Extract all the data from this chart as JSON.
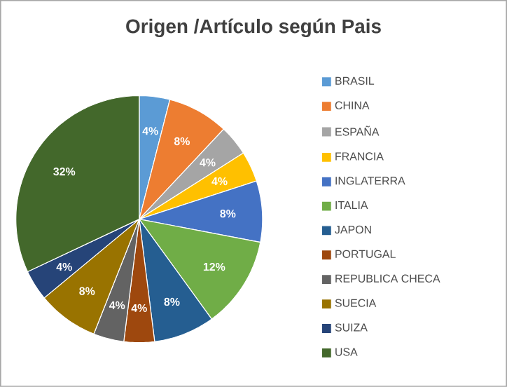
{
  "chart_data": {
    "type": "pie",
    "title": "Origen /Artículo según Pais",
    "categories": [
      "BRASIL",
      "CHINA",
      "ESPAÑA",
      "FRANCIA",
      "INGLATERRA",
      "ITALIA",
      "JAPON",
      "PORTUGAL",
      "REPUBLICA CHECA",
      "SUECIA",
      "SUIZA",
      "USA"
    ],
    "values": [
      4,
      8,
      4,
      4,
      8,
      12,
      8,
      4,
      4,
      8,
      4,
      32
    ],
    "value_labels": [
      "4%",
      "8%",
      "4%",
      "4%",
      "8%",
      "12%",
      "8%",
      "4%",
      "4%",
      "8%",
      "4%",
      "32%"
    ],
    "colors": [
      "#5b9bd5",
      "#ed7d31",
      "#a5a5a5",
      "#ffc000",
      "#4472c4",
      "#70ad47",
      "#255e91",
      "#9e480e",
      "#636363",
      "#997300",
      "#264478",
      "#43682b"
    ],
    "legend": "right"
  }
}
